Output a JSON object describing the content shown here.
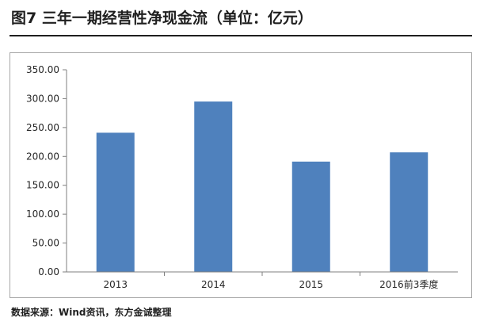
{
  "figure": {
    "title": "图7  三年一期经营性净现金流（单位：亿元）",
    "source": "数据来源：Wind资讯，东方金诚整理"
  },
  "chart_data": {
    "type": "bar",
    "title": "",
    "xlabel": "",
    "ylabel": "",
    "categories": [
      "2013",
      "2014",
      "2015",
      "2016前3季度"
    ],
    "values": [
      241,
      295,
      191,
      207
    ],
    "ylim": [
      0,
      350
    ],
    "yticks": [
      "0.00",
      "50.00",
      "100.00",
      "150.00",
      "200.00",
      "250.00",
      "300.00",
      "350.00"
    ],
    "grid": false,
    "legend": "none",
    "bar_color": "#4f81bd",
    "axis_color": "#7f7f7f"
  }
}
